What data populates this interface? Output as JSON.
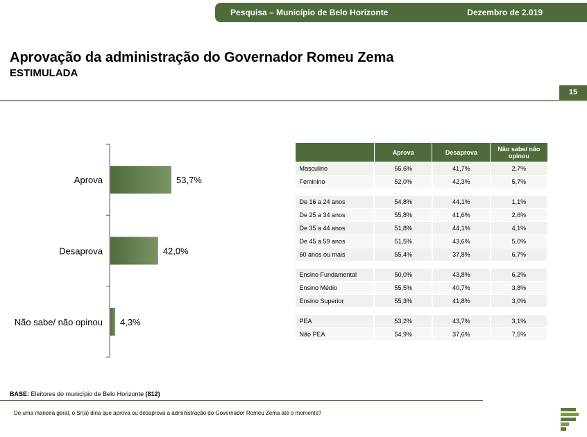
{
  "header": {
    "survey": "Pesquisa – Município de Belo Horizonte",
    "date": "Dezembro de 2.019"
  },
  "title": "Aprovação da administração do Governador Romeu Zema",
  "subtitle": "ESTIMULADA",
  "page_number": "15",
  "chart_data": {
    "type": "bar",
    "orientation": "horizontal",
    "categories": [
      "Aprova",
      "Desaprova",
      "Não sabe/ não opinou"
    ],
    "values": [
      53.7,
      42.0,
      4.3
    ],
    "value_labels": [
      "53,7%",
      "42,0%",
      "4,3%"
    ],
    "unit": "%",
    "xlim": [
      0,
      100
    ],
    "grid": false,
    "legend": "none",
    "colors": {
      "bar": "#4f6b3b",
      "bar_light": "#7a9466"
    }
  },
  "table": {
    "headers": [
      "",
      "Aprova",
      "Desaprova",
      "Não sabe/ não opinou"
    ],
    "groups": [
      [
        [
          "Masculino",
          "55,6%",
          "41,7%",
          "2,7%"
        ],
        [
          "Feminino",
          "52,0%",
          "42,3%",
          "5,7%"
        ]
      ],
      [
        [
          "De 16 a 24 anos",
          "54,8%",
          "44,1%",
          "1,1%"
        ],
        [
          "De 25 a 34 anos",
          "55,8%",
          "41,6%",
          "2,6%"
        ],
        [
          "De 35 a 44 anos",
          "51,8%",
          "44,1%",
          "4,1%"
        ],
        [
          "De 45 a 59 anos",
          "51,5%",
          "43,6%",
          "5,0%"
        ],
        [
          "60 anos ou mais",
          "55,4%",
          "37,8%",
          "6,7%"
        ]
      ],
      [
        [
          "Ensino Fundamental",
          "50,0%",
          "43,8%",
          "6,2%"
        ],
        [
          "Ensino Médio",
          "55,5%",
          "40,7%",
          "3,8%"
        ],
        [
          "Ensino Superior",
          "55,3%",
          "41,8%",
          "3,0%"
        ]
      ],
      [
        [
          "PEA",
          "53,2%",
          "43,7%",
          "3,1%"
        ],
        [
          "Não PEA",
          "54,9%",
          "37,6%",
          "7,5%"
        ]
      ]
    ]
  },
  "footer": {
    "base_label": "BASE:",
    "base_text": "Eleitores do município de Belo Horizonte",
    "base_n": "(812)",
    "question": "De uma maneira geral, o Sr(a) diria que aprova ou desaprova a administração do Governador Romeu Zema até o momento?"
  },
  "colors": {
    "brand": "#4f6b3b"
  }
}
